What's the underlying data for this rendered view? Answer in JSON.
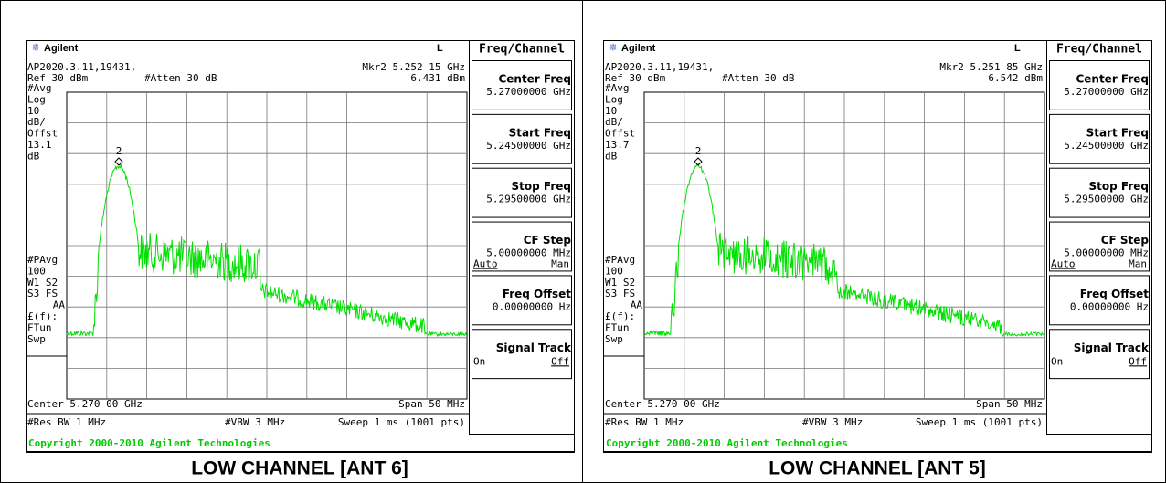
{
  "panels": [
    {
      "caption": "LOW CHANNEL [ANT 6]",
      "screen": {
        "brand": "Agilent",
        "mode": "L",
        "id": "AP2020.3.11,19431,",
        "marker": "Mkr2  5.252 15 GHz",
        "ref": "Ref 30 dBm",
        "atten": "#Atten 30 dB",
        "marker_level": "6.431 dBm",
        "left_labels": [
          "#Avg",
          "Log",
          "10",
          "dB/",
          "Offst",
          "13.1",
          "dB"
        ],
        "left_labels2": [
          "#PAvg",
          "100",
          "W1  S2",
          "S3  FS",
          "AA",
          "£(f):",
          "FTun",
          "Swp"
        ],
        "marker_num": "2",
        "center": "Center 5.270 00 GHz",
        "span": "Span 50 MHz",
        "rbw": "#Res BW 1 MHz",
        "vbw": "#VBW 3 MHz",
        "sweep": "Sweep 1 ms (1001 pts)",
        "copyright": "Copyright 2000-2010 Agilent Technologies"
      },
      "menu": {
        "title": "Freq/Channel",
        "items": [
          {
            "label": "Center Freq",
            "value": "5.27000000 GHz"
          },
          {
            "label": "Start Freq",
            "value": "5.24500000 GHz"
          },
          {
            "label": "Stop Freq",
            "value": "5.29500000 GHz"
          },
          {
            "label": "CF Step",
            "value": "5.00000000 MHz",
            "options": [
              "Auto",
              "Man"
            ]
          },
          {
            "label": "Freq Offset",
            "value": "0.00000000  Hz"
          },
          {
            "label": "Signal Track",
            "options": [
              "On",
              "Off"
            ]
          }
        ]
      }
    },
    {
      "caption": "LOW CHANNEL [ANT 5]",
      "screen": {
        "brand": "Agilent",
        "mode": "L",
        "id": "AP2020.3.11,19431,",
        "marker": "Mkr2  5.251 85 GHz",
        "ref": "Ref 30 dBm",
        "atten": "#Atten 30 dB",
        "marker_level": "6.542 dBm",
        "left_labels": [
          "#Avg",
          "Log",
          "10",
          "dB/",
          "Offst",
          "13.7",
          "dB"
        ],
        "left_labels2": [
          "#PAvg",
          "100",
          "W1  S2",
          "S3  FS",
          "AA",
          "£(f):",
          "FTun",
          "Swp"
        ],
        "marker_num": "2",
        "center": "Center 5.270 00 GHz",
        "span": "Span 50 MHz",
        "rbw": "#Res BW 1 MHz",
        "vbw": "#VBW 3 MHz",
        "sweep": "Sweep 1 ms (1001 pts)",
        "copyright": "Copyright 2000-2010 Agilent Technologies"
      },
      "menu": {
        "title": "Freq/Channel",
        "items": [
          {
            "label": "Center Freq",
            "value": "5.27000000 GHz"
          },
          {
            "label": "Start Freq",
            "value": "5.24500000 GHz"
          },
          {
            "label": "Stop Freq",
            "value": "5.29500000 GHz"
          },
          {
            "label": "CF Step",
            "value": "5.00000000 MHz",
            "options": [
              "Auto",
              "Man"
            ]
          },
          {
            "label": "Freq Offset",
            "value": "0.00000000  Hz"
          },
          {
            "label": "Signal Track",
            "options": [
              "On",
              "Off"
            ]
          }
        ]
      }
    }
  ]
}
